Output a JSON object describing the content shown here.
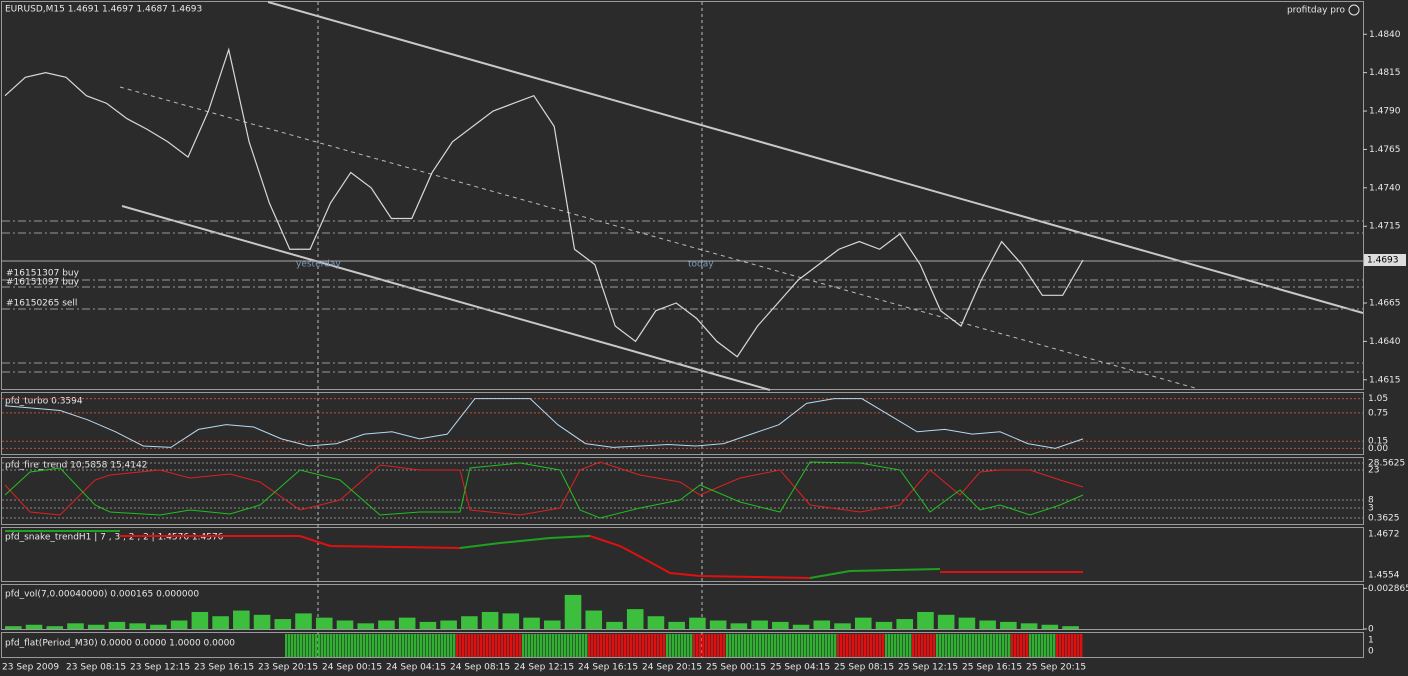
{
  "header": {
    "symbol": "EURUSD,M15  1.4691 1.4697 1.4687 1.4693",
    "brand": "profitday pro"
  },
  "main": {
    "ylim": [
      1.4609,
      1.4861
    ],
    "yticks": [
      {
        "value": 1.484,
        "label": "1.4840"
      },
      {
        "value": 1.4815,
        "label": "1.4815"
      },
      {
        "value": 1.479,
        "label": "1.4790"
      },
      {
        "value": 1.4765,
        "label": "1.4765"
      },
      {
        "value": 1.474,
        "label": "1.4740"
      },
      {
        "value": 1.4715,
        "label": "1.4715"
      },
      {
        "value": 1.4665,
        "label": "1.4665"
      },
      {
        "value": 1.464,
        "label": "1.4640"
      },
      {
        "value": 1.4615,
        "label": "1.4615"
      }
    ],
    "current": {
      "value": 1.4693,
      "label": "1.4693"
    },
    "close": [
      1.48,
      1.4812,
      1.4815,
      1.4812,
      1.48,
      1.4795,
      1.4785,
      1.4778,
      1.477,
      1.476,
      1.479,
      1.483,
      1.477,
      1.473,
      1.47,
      1.47,
      1.473,
      1.475,
      1.474,
      1.472,
      1.472,
      1.475,
      1.477,
      1.478,
      1.479,
      1.4795,
      1.48,
      1.478,
      1.47,
      1.469,
      1.465,
      1.464,
      1.466,
      1.4665,
      1.4655,
      1.464,
      1.463,
      1.465,
      1.4665,
      1.468,
      1.469,
      1.47,
      1.4705,
      1.47,
      1.471,
      1.469,
      1.466,
      1.465,
      1.468,
      1.4705,
      1.469,
      1.467,
      1.467,
      1.4693
    ],
    "orders": [
      "#16151307 buy",
      "#16151097 buy",
      "#16150265 sell"
    ],
    "markers": [
      "yesterday",
      "today"
    ]
  },
  "turbo": {
    "title": "pfd_turbo 0.3594",
    "ylim": [
      -0.12,
      1.17
    ],
    "yticks": [
      1.05,
      0.75,
      0.15,
      {
        "value": 0,
        "label": "0.00"
      }
    ],
    "values": [
      0.9,
      0.85,
      0.8,
      0.6,
      0.35,
      0.05,
      0.02,
      0.4,
      0.5,
      0.45,
      0.2,
      0.05,
      0.1,
      0.3,
      0.35,
      0.2,
      0.3,
      1.05,
      1.05,
      1.05,
      0.5,
      0.1,
      0.02,
      0.05,
      0.08,
      0.05,
      0.1,
      0.3,
      0.5,
      0.95,
      1.05,
      1.05,
      0.7,
      0.35,
      0.4,
      0.3,
      0.35,
      0.1,
      0.0,
      0.2
    ]
  },
  "fire": {
    "title": "pfd_fire_trend 10,5858 15,4142",
    "yticks": [
      "28.5625",
      "23",
      "8",
      "3",
      "0.3625"
    ]
  },
  "snake": {
    "title": "pfd_snake_trendH1 | 7 , 3 , 2 , 2 |  1.4576 1.4576",
    "yticks": [
      "1.4672",
      "1.4554"
    ]
  },
  "vol": {
    "title": "pfd_vol(7,0.00040000) 0.000165 0.000000",
    "ylim": [
      0,
      0.0031
    ],
    "yticks": [
      {
        "value": 0.002865,
        "label": "0.002865"
      },
      {
        "value": 0,
        "label": "0"
      }
    ],
    "values": [
      0.0002,
      0.0003,
      0.0002,
      0.0004,
      0.0003,
      0.0005,
      0.0004,
      0.0003,
      0.0006,
      0.0012,
      0.0009,
      0.0013,
      0.001,
      0.0007,
      0.0011,
      0.0008,
      0.0006,
      0.0004,
      0.0006,
      0.0008,
      0.0005,
      0.0006,
      0.0009,
      0.0012,
      0.0011,
      0.0008,
      0.0006,
      0.0024,
      0.0013,
      0.0005,
      0.0014,
      0.0009,
      0.0005,
      0.0008,
      0.0006,
      0.0004,
      0.0006,
      0.0005,
      0.0003,
      0.0006,
      0.0004,
      0.0008,
      0.0005,
      0.0007,
      0.0012,
      0.001,
      0.0008,
      0.0006,
      0.0005,
      0.0004,
      0.0003,
      0.0002
    ]
  },
  "flat": {
    "title": "pfd_flat(Period_M30) 0.0000 0.0000 1.0000 0.0000",
    "yticks": [
      "1",
      "0"
    ]
  },
  "time_labels": [
    "23 Sep 2009",
    "23 Sep 08:15",
    "23 Sep 12:15",
    "23 Sep 16:15",
    "23 Sep 20:15",
    "24 Sep 00:15",
    "24 Sep 04:15",
    "24 Sep 08:15",
    "24 Sep 12:15",
    "24 Sep 16:15",
    "24 Sep 20:15",
    "25 Sep 00:15",
    "25 Sep 04:15",
    "25 Sep 08:15",
    "25 Sep 12:15",
    "25 Sep 16:15",
    "25 Sep 20:15"
  ]
}
